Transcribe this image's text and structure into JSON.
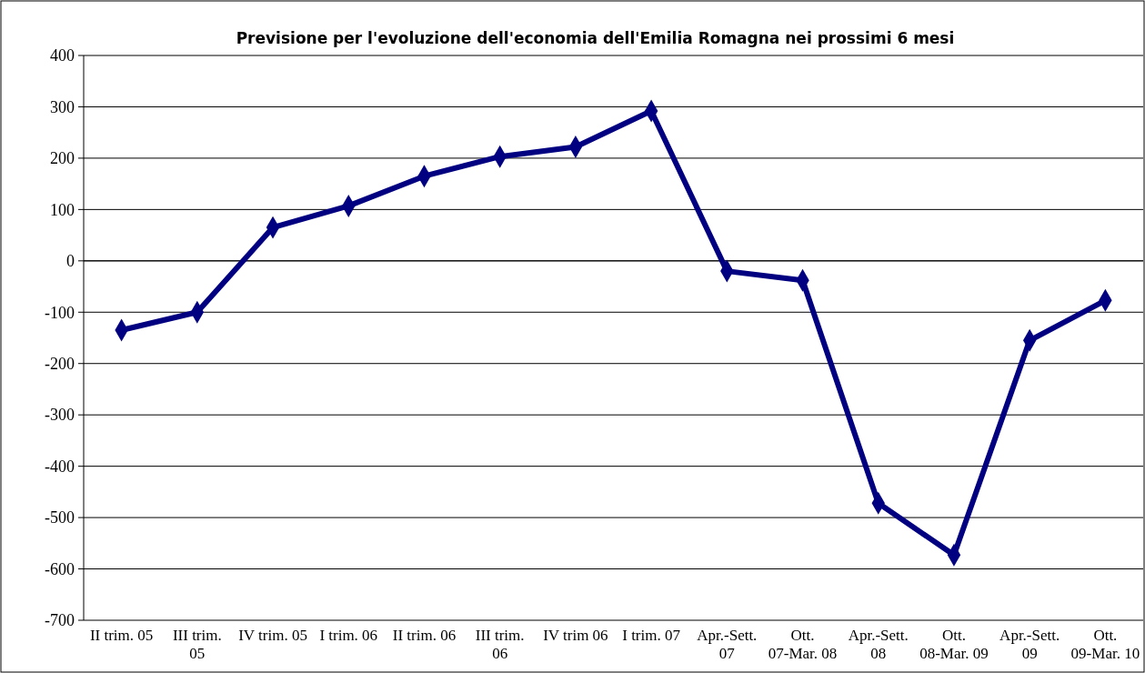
{
  "chart_data": {
    "type": "line",
    "title": "Previsione per l'evoluzione dell'economia dell'Emilia Romagna nei prossimi 6 mesi",
    "categories": [
      "II trim. 05",
      "III trim. 05",
      "IV trim. 05",
      "I trim. 06",
      "II trim. 06",
      "III trim. 06",
      "IV trim 06",
      "I trim. 07",
      "Apr.-Sett. 07",
      "Ott. 07-Mar. 08",
      "Apr.-Sett. 08",
      "Ott. 08-Mar. 09",
      "Apr.-Sett. 09",
      "Ott. 09-Mar. 10"
    ],
    "series": [
      {
        "color": "#000080",
        "values": [
          -135,
          -100,
          65,
          107,
          165,
          203,
          222,
          292,
          -20,
          -38,
          -472,
          -573,
          -155,
          -77
        ]
      }
    ],
    "ylim": [
      -700,
      400
    ],
    "yticks": [
      -700,
      -600,
      -500,
      -400,
      -300,
      -200,
      -100,
      0,
      100,
      200,
      300,
      400
    ],
    "grid": "y",
    "marker": "diamond",
    "line_style": "solid"
  }
}
